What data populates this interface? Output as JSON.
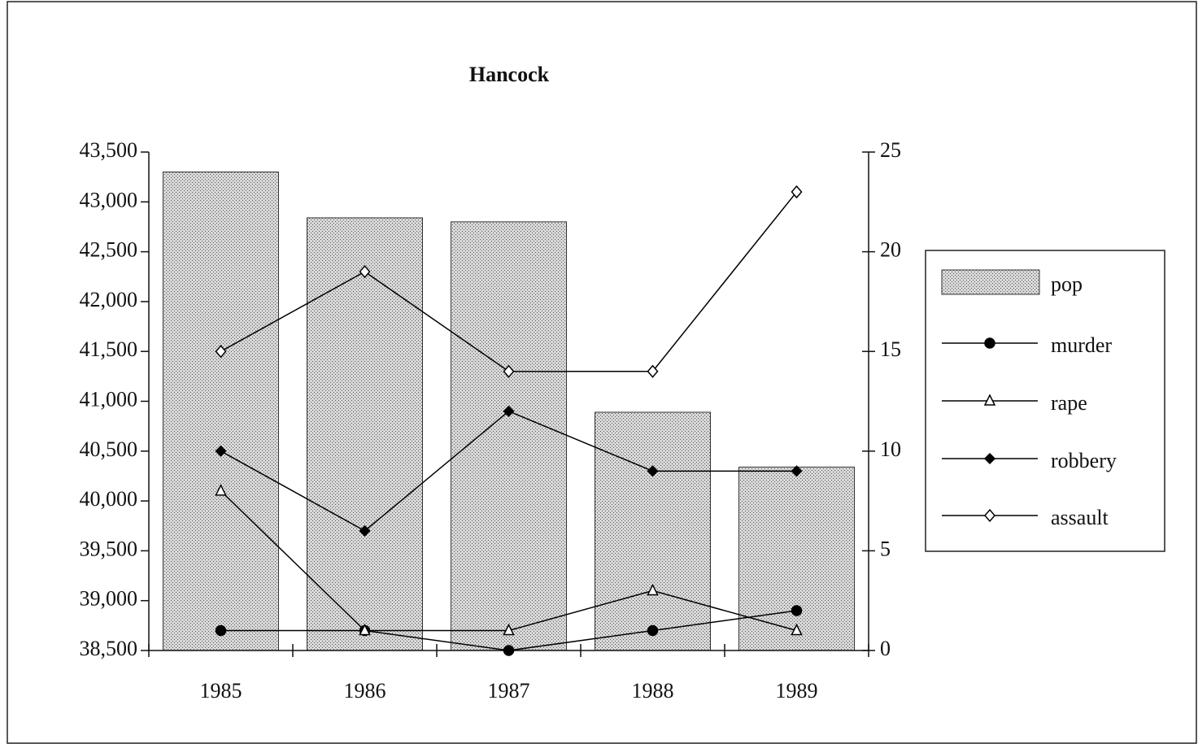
{
  "chart_data": {
    "type": "bar-line",
    "title": "Hancock",
    "categories": [
      "1985",
      "1986",
      "1987",
      "1988",
      "1989"
    ],
    "series": [
      {
        "name": "pop",
        "type": "bar",
        "color": "#c4c4c4",
        "axis": "y",
        "values": [
          43300,
          42840,
          42800,
          40890,
          40340
        ]
      },
      {
        "name": "murder",
        "type": "line",
        "color": "#000000",
        "axis": "y2",
        "marker": "circle",
        "values": [
          1,
          1,
          0,
          1,
          2
        ]
      },
      {
        "name": "rape",
        "type": "line",
        "color": "#000000",
        "axis": "y2",
        "marker": "triangle",
        "values": [
          8,
          1,
          1,
          3,
          1
        ]
      },
      {
        "name": "robbery",
        "type": "line",
        "color": "#000000",
        "axis": "y2",
        "marker": "diamond",
        "values": [
          10,
          6,
          12,
          9,
          9
        ]
      },
      {
        "name": "assault",
        "type": "line",
        "color": "#000000",
        "axis": "y2",
        "marker": "open-diamond",
        "values": [
          15,
          19,
          14,
          14,
          23
        ]
      }
    ],
    "ylim": [
      38500,
      43500
    ],
    "yticks": [
      {
        "value": 38500,
        "label": "38,500"
      },
      {
        "value": 39000,
        "label": "39,000"
      },
      {
        "value": 39500,
        "label": "39,500"
      },
      {
        "value": 40000,
        "label": "40,000"
      },
      {
        "value": 40500,
        "label": "40,500"
      },
      {
        "value": 41000,
        "label": "41,000"
      },
      {
        "value": 41500,
        "label": "41,500"
      },
      {
        "value": 42000,
        "label": "42,000"
      },
      {
        "value": 42500,
        "label": "42,500"
      },
      {
        "value": 43000,
        "label": "43,000"
      },
      {
        "value": 43500,
        "label": "43,500"
      }
    ],
    "y2lim": [
      0,
      25
    ],
    "y2ticks": [
      0,
      5,
      10,
      15,
      20,
      25
    ],
    "legend": "right",
    "grid": false
  }
}
